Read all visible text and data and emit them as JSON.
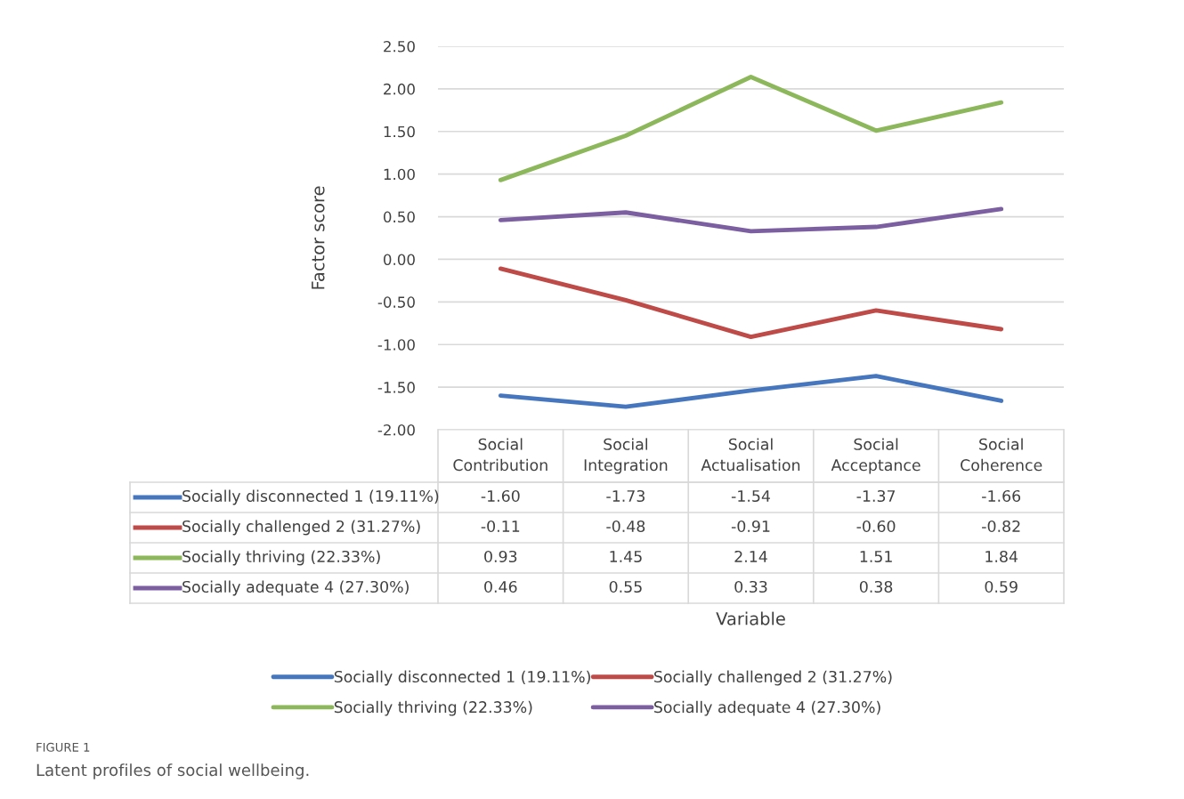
{
  "chart_data": {
    "type": "line",
    "ylabel": "Factor score",
    "categories": [
      "Social Contribution",
      "Social Integration",
      "Social Actualisation",
      "Social Acceptance",
      "Social Coherence"
    ],
    "series": [
      {
        "name": "Socially disconnected 1 (19.11%)",
        "color": "#4677be",
        "values": [
          -1.6,
          -1.73,
          -1.54,
          -1.37,
          -1.66
        ],
        "value_labels": [
          "-1.60",
          "-1.73",
          "-1.54",
          "-1.37",
          "-1.66"
        ]
      },
      {
        "name": "Socially challenged 2 (31.27%)",
        "color": "#be4b48",
        "values": [
          -0.11,
          -0.48,
          -0.91,
          -0.6,
          -0.82
        ],
        "value_labels": [
          "-0.11",
          "-0.48",
          "-0.91",
          "-0.60",
          "-0.82"
        ]
      },
      {
        "name": "Socially thriving (22.33%)",
        "color": "#8cb75a",
        "values": [
          0.93,
          1.45,
          2.14,
          1.51,
          1.84
        ],
        "value_labels": [
          "0.93",
          "1.45",
          "2.14",
          "1.51",
          "1.84"
        ]
      },
      {
        "name": "Socially adequate 4 (27.30%)",
        "color": "#7c5fa0",
        "values": [
          0.46,
          0.55,
          0.33,
          0.38,
          0.59
        ],
        "value_labels": [
          "0.46",
          "0.55",
          "0.33",
          "0.38",
          "0.59"
        ]
      }
    ],
    "ylim": [
      -2.0,
      2.5
    ],
    "yticks": [
      {
        "value": -2.0,
        "label": "-2.00"
      },
      {
        "value": -1.5,
        "label": "-1.50"
      },
      {
        "value": -1.0,
        "label": "-1.00"
      },
      {
        "value": -0.5,
        "label": "-0.50"
      },
      {
        "value": 0.0,
        "label": "0.00"
      },
      {
        "value": 0.5,
        "label": "0.50"
      },
      {
        "value": 1.0,
        "label": "1.00"
      },
      {
        "value": 1.5,
        "label": "1.50"
      },
      {
        "value": 2.0,
        "label": "2.00"
      },
      {
        "value": 2.5,
        "label": "2.50"
      }
    ],
    "grid": "y",
    "legend": "bottom",
    "marker": "none",
    "line_style": "solid",
    "annotations": [
      "Variable",
      "FIGURE 1",
      "Latent profiles of social wellbeing."
    ]
  }
}
